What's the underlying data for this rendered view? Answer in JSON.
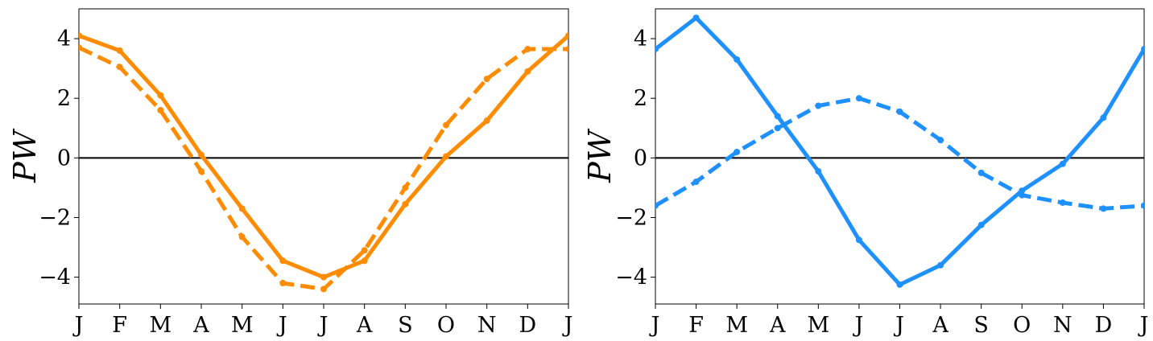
{
  "chart_data": [
    {
      "type": "line",
      "ylabel": "PW",
      "xlabel": "",
      "x_tick_labels": [
        "J",
        "F",
        "M",
        "A",
        "M",
        "J",
        "J",
        "A",
        "S",
        "O",
        "N",
        "D",
        "J"
      ],
      "y_ticks": [
        4,
        2,
        0,
        -2,
        -4
      ],
      "y_tick_labels": [
        "4",
        "2",
        "0",
        "−2",
        "−4"
      ],
      "xlim": [
        0,
        12
      ],
      "ylim": [
        -4.9,
        5.0
      ],
      "zero_line": true,
      "color": "#ff8c00",
      "series": [
        {
          "style": "solid",
          "values": [
            4.1,
            3.6,
            2.1,
            0.1,
            -1.7,
            -3.45,
            -4.0,
            -3.45,
            -1.55,
            0.05,
            1.25,
            2.9,
            4.1
          ]
        },
        {
          "style": "dashed",
          "values": [
            3.7,
            3.05,
            1.6,
            -0.45,
            -2.65,
            -4.2,
            -4.4,
            -3.1,
            -1.0,
            1.1,
            2.65,
            3.65,
            3.65
          ]
        }
      ]
    },
    {
      "type": "line",
      "ylabel": "PW",
      "xlabel": "",
      "x_tick_labels": [
        "J",
        "F",
        "M",
        "A",
        "M",
        "J",
        "J",
        "A",
        "S",
        "O",
        "N",
        "D",
        "J"
      ],
      "y_ticks": [
        4,
        2,
        0,
        -2,
        -4
      ],
      "y_tick_labels": [
        "4",
        "2",
        "0",
        "−2",
        "−4"
      ],
      "xlim": [
        0,
        12
      ],
      "ylim": [
        -4.9,
        5.0
      ],
      "zero_line": true,
      "color": "#1e90ff",
      "series": [
        {
          "style": "solid",
          "values": [
            3.65,
            4.7,
            3.3,
            1.4,
            -0.45,
            -2.75,
            -4.25,
            -3.6,
            -2.25,
            -1.1,
            -0.2,
            1.35,
            3.65
          ]
        },
        {
          "style": "dashed",
          "values": [
            -1.6,
            -0.8,
            0.2,
            1.0,
            1.75,
            2.0,
            1.55,
            0.6,
            -0.5,
            -1.25,
            -1.5,
            -1.7,
            -1.6
          ]
        }
      ]
    }
  ]
}
